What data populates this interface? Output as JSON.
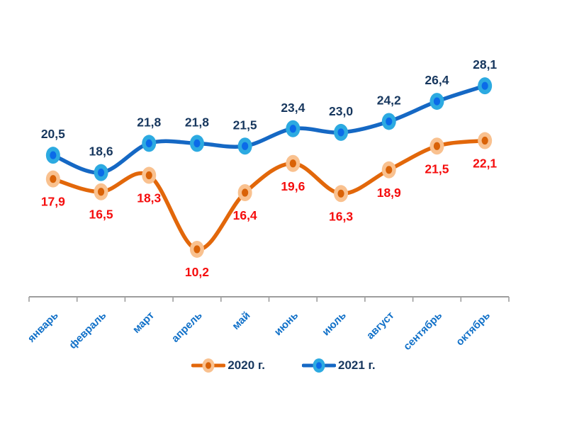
{
  "chart_data": {
    "type": "line",
    "title": "",
    "xlabel": "",
    "ylabel": "",
    "categories": [
      "январь",
      "февраль",
      "март",
      "апрель",
      "май",
      "июнь",
      "июль",
      "август",
      "сентябрь",
      "октябрь"
    ],
    "series": [
      {
        "name": "2020 г.",
        "values": [
          17.9,
          16.5,
          18.3,
          10.2,
          16.4,
          19.6,
          16.3,
          18.9,
          21.5,
          22.1
        ],
        "line_color": "#E2670A",
        "marker_fill": "#F9C18F",
        "marker_dot": "#D96207",
        "label_color": "#F50D0D",
        "label_position": "below"
      },
      {
        "name": "2021 г.",
        "values": [
          20.5,
          18.6,
          21.8,
          21.8,
          21.5,
          23.4,
          23.0,
          24.2,
          26.4,
          28.1
        ],
        "line_color": "#1568C4",
        "marker_fill": "#2CAAE1",
        "marker_dot": "#0B6BE8",
        "label_color": "#17375E",
        "label_position": "above"
      }
    ],
    "ylim": [
      5,
      33
    ],
    "grid": false,
    "smooth_lines": true,
    "data_labels_decimals": 1,
    "decimal_separator": ",",
    "legend_position": "bottom",
    "axis_color": "#9E9E9E",
    "x_tick_label_color": "#1070C8",
    "x_tick_rotation": -45
  }
}
